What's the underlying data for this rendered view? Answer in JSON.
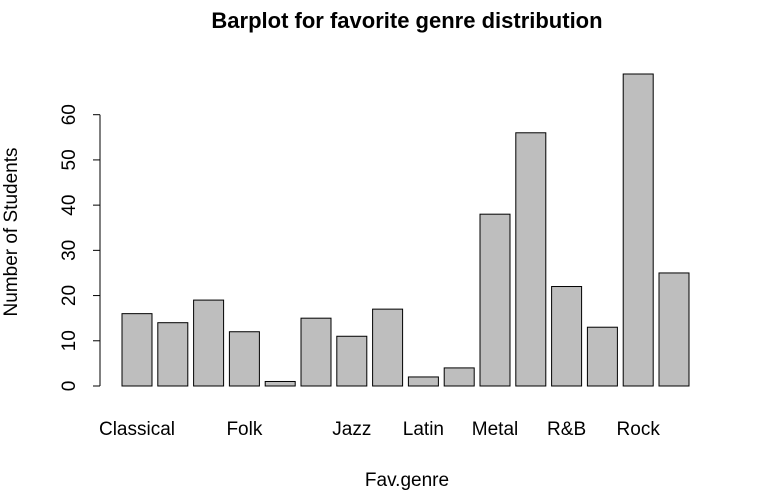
{
  "chart_data": {
    "type": "bar",
    "title": "Barplot for favorite genre distribution",
    "x_label": "Fav.genre",
    "y_label": "Number of Students",
    "categories": [
      "Classical",
      null,
      null,
      "Folk",
      null,
      null,
      "Jazz",
      null,
      "Latin",
      null,
      "Metal",
      null,
      "R&B",
      null,
      "Rock",
      null
    ],
    "values": [
      16,
      14,
      19,
      12,
      1,
      15,
      11,
      17,
      2,
      4,
      38,
      56,
      22,
      13,
      69,
      25
    ],
    "color": "#bebebe",
    "ylim": [
      0,
      69
    ],
    "yticks": [
      0,
      10,
      20,
      30,
      40,
      50,
      60
    ],
    "grid": false
  }
}
